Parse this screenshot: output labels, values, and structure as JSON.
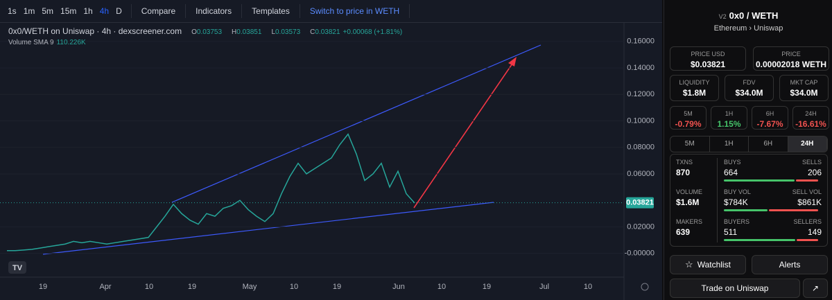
{
  "toolbar": {
    "intervals": [
      {
        "label": "1s"
      },
      {
        "label": "1m"
      },
      {
        "label": "5m"
      },
      {
        "label": "15m"
      },
      {
        "label": "1h"
      },
      {
        "label": "4h",
        "selected": true
      },
      {
        "label": "D"
      }
    ],
    "buttons": [
      "Compare",
      "Indicators",
      "Templates",
      "Switch to price in WETH"
    ]
  },
  "chart_data": {
    "type": "line",
    "title": "0x0/WETH on Uniswap · 4h · dexscreener.com",
    "ohlc": [
      {
        "label": "O",
        "value": "0.03753"
      },
      {
        "label": "H",
        "value": "0.03851"
      },
      {
        "label": "L",
        "value": "0.03573"
      },
      {
        "label": "C",
        "value": "0.03821"
      }
    ],
    "change": "+0.00068 (+1.81%)",
    "volume_label": "Volume",
    "volume_sma": "SMA 9",
    "volume_value": "110.226K",
    "color": "#26a69a",
    "values": [
      0.002,
      0.002,
      0.0025,
      0.003,
      0.004,
      0.005,
      0.006,
      0.007,
      0.009,
      0.008,
      0.009,
      0.008,
      0.007,
      0.008,
      0.009,
      0.01,
      0.011,
      0.012,
      0.02,
      0.028,
      0.037,
      0.03,
      0.025,
      0.022,
      0.03,
      0.028,
      0.034,
      0.036,
      0.04,
      0.033,
      0.028,
      0.024,
      0.03,
      0.045,
      0.058,
      0.068,
      0.06,
      0.064,
      0.068,
      0.072,
      0.082,
      0.09,
      0.075,
      0.055,
      0.06,
      0.068,
      0.05,
      0.062,
      0.045,
      0.038
    ],
    "ylim": [
      -0.018,
      0.173
    ],
    "yticks": [
      {
        "value": 0.16,
        "label": "0.16000"
      },
      {
        "value": 0.14,
        "label": "0.14000"
      },
      {
        "value": 0.12,
        "label": "0.12000"
      },
      {
        "value": 0.1,
        "label": "0.10000"
      },
      {
        "value": 0.08,
        "label": "0.08000"
      },
      {
        "value": 0.06,
        "label": "0.06000"
      },
      {
        "value": 0.02,
        "label": "0.02000"
      },
      {
        "value": 0,
        "label": "-0.00000"
      }
    ],
    "last_price": {
      "value": 0.03821,
      "label": "0.03821"
    },
    "xticks": [
      "19",
      "Apr",
      "10",
      "19",
      "May",
      "10",
      "19",
      "Jun",
      "10",
      "19",
      "Jul",
      "10"
    ]
  },
  "panel": {
    "version": "V2",
    "token": "0x0",
    "pair": "/ WETH",
    "chain": "Ethereum",
    "separator": "›",
    "dex": "Uniswap",
    "prices": [
      {
        "label": "PRICE USD",
        "value": "$0.03821"
      },
      {
        "label": "PRICE",
        "value": "0.00002018 WETH"
      }
    ],
    "metrics": [
      {
        "label": "LIQUIDITY",
        "value": "$1.8M"
      },
      {
        "label": "FDV",
        "value": "$34.0M"
      },
      {
        "label": "MKT CAP",
        "value": "$34.0M"
      }
    ],
    "changes": [
      {
        "label": "5M",
        "value": "-0.79%",
        "color": "#f0524f"
      },
      {
        "label": "1H",
        "value": "1.15%",
        "color": "#46c46a"
      },
      {
        "label": "6H",
        "value": "-7.67%",
        "color": "#f0524f"
      },
      {
        "label": "24H",
        "value": "-16.61%",
        "color": "#f0524f"
      }
    ],
    "tabs": [
      {
        "label": "5M"
      },
      {
        "label": "1H"
      },
      {
        "label": "6H"
      },
      {
        "label": "24H",
        "selected": true
      }
    ],
    "stats": [
      {
        "label": "TXNS",
        "value": "870",
        "left_label": "BUYS",
        "left_value": "664",
        "right_label": "SELLS",
        "right_value": "206",
        "left": 664,
        "right": 206
      },
      {
        "label": "VOLUME",
        "value": "$1.6M",
        "left_label": "BUY VOL",
        "left_value": "$784K",
        "right_label": "SELL VOL",
        "right_value": "$861K",
        "left": 784000,
        "right": 861000
      },
      {
        "label": "MAKERS",
        "value": "639",
        "left_label": "BUYERS",
        "left_value": "511",
        "right_label": "SELLERS",
        "right_value": "149",
        "left": 511,
        "right": 149
      }
    ],
    "watchlist": "Watchlist",
    "alerts": "Alerts",
    "trade": "Trade on Uniswap"
  }
}
